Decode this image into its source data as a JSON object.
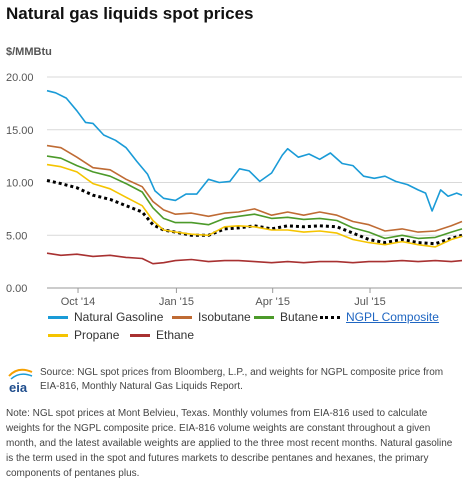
{
  "header": {
    "title": "Natural gas liquids spot prices",
    "unit": "$/MMBtu"
  },
  "chart_data": {
    "type": "line",
    "title": "Natural gas liquids spot prices",
    "ylabel": "$/MMBtu",
    "ylim": [
      0,
      20
    ],
    "yticks": [
      "0.00",
      "5.00",
      "10.00",
      "15.00",
      "20.00"
    ],
    "xlim": [
      "2014-09-02",
      "2015-09-25"
    ],
    "xticks": [
      {
        "date": "2014-10-01",
        "label": "Oct '14"
      },
      {
        "date": "2015-01-01",
        "label": "Jan '15"
      },
      {
        "date": "2015-04-01",
        "label": "Apr '15"
      },
      {
        "date": "2015-07-01",
        "label": "Jul '15"
      }
    ],
    "grid": "horizontal",
    "legend_position": "bottom",
    "series": [
      {
        "name": "Natural Gasoline",
        "color": "#1a9bd7",
        "style": "solid",
        "x": [
          "2014-09-02",
          "2014-09-10",
          "2014-09-20",
          "2014-09-30",
          "2014-10-08",
          "2014-10-15",
          "2014-10-25",
          "2014-11-05",
          "2014-11-15",
          "2014-11-25",
          "2014-12-05",
          "2014-12-12",
          "2014-12-20",
          "2014-12-31",
          "2015-01-10",
          "2015-01-20",
          "2015-01-31",
          "2015-02-10",
          "2015-02-20",
          "2015-03-01",
          "2015-03-10",
          "2015-03-20",
          "2015-03-31",
          "2015-04-10",
          "2015-04-15",
          "2015-04-25",
          "2015-05-05",
          "2015-05-15",
          "2015-05-25",
          "2015-06-05",
          "2015-06-15",
          "2015-06-25",
          "2015-07-05",
          "2015-07-15",
          "2015-07-25",
          "2015-08-05",
          "2015-08-15",
          "2015-08-22",
          "2015-08-28",
          "2015-09-05",
          "2015-09-12",
          "2015-09-20",
          "2015-09-25"
        ],
        "values": [
          18.7,
          18.5,
          18.0,
          16.8,
          15.7,
          15.6,
          14.5,
          14.0,
          13.3,
          12.0,
          10.8,
          9.2,
          8.5,
          8.3,
          8.9,
          8.9,
          10.3,
          10.0,
          10.1,
          11.3,
          11.1,
          10.1,
          10.9,
          12.6,
          13.2,
          12.4,
          12.7,
          12.2,
          12.8,
          11.8,
          11.6,
          10.6,
          10.4,
          10.6,
          10.1,
          9.8,
          9.3,
          9.0,
          7.3,
          9.3,
          8.7,
          9.0,
          8.8
        ]
      },
      {
        "name": "Isobutane",
        "color": "#bf6b34",
        "style": "solid",
        "x": [
          "2014-09-02",
          "2014-09-15",
          "2014-09-30",
          "2014-10-15",
          "2014-10-31",
          "2014-11-15",
          "2014-11-30",
          "2014-12-10",
          "2014-12-20",
          "2014-12-31",
          "2015-01-15",
          "2015-01-31",
          "2015-02-15",
          "2015-02-28",
          "2015-03-15",
          "2015-03-31",
          "2015-04-15",
          "2015-04-30",
          "2015-05-15",
          "2015-05-31",
          "2015-06-15",
          "2015-06-30",
          "2015-07-15",
          "2015-07-31",
          "2015-08-15",
          "2015-08-31",
          "2015-09-15",
          "2015-09-25"
        ],
        "values": [
          13.5,
          13.3,
          12.4,
          11.4,
          11.2,
          10.3,
          9.6,
          8.2,
          7.4,
          7.0,
          7.1,
          6.8,
          7.1,
          7.2,
          7.5,
          6.9,
          7.2,
          6.9,
          7.2,
          6.9,
          6.3,
          6.0,
          5.4,
          5.6,
          5.3,
          5.4,
          5.9,
          6.3
        ]
      },
      {
        "name": "Butane",
        "color": "#4c9a2a",
        "style": "solid",
        "x": [
          "2014-09-02",
          "2014-09-15",
          "2014-09-30",
          "2014-10-15",
          "2014-10-31",
          "2014-11-15",
          "2014-11-30",
          "2014-12-10",
          "2014-12-20",
          "2014-12-31",
          "2015-01-15",
          "2015-01-31",
          "2015-02-15",
          "2015-02-28",
          "2015-03-15",
          "2015-03-31",
          "2015-04-15",
          "2015-04-30",
          "2015-05-15",
          "2015-05-31",
          "2015-06-15",
          "2015-06-30",
          "2015-07-15",
          "2015-07-31",
          "2015-08-15",
          "2015-08-31",
          "2015-09-15",
          "2015-09-25"
        ],
        "values": [
          12.5,
          12.3,
          11.6,
          11.0,
          10.6,
          9.9,
          9.1,
          7.6,
          6.6,
          6.2,
          6.2,
          6.0,
          6.6,
          6.8,
          7.0,
          6.6,
          6.7,
          6.5,
          6.6,
          6.4,
          5.7,
          5.3,
          4.7,
          5.0,
          4.7,
          4.8,
          5.3,
          5.6
        ]
      },
      {
        "name": "NGPL Composite",
        "color": "#000000",
        "style": "dotted",
        "x": [
          "2014-09-02",
          "2014-09-15",
          "2014-09-30",
          "2014-10-15",
          "2014-10-31",
          "2014-11-15",
          "2014-11-30",
          "2014-12-10",
          "2014-12-20",
          "2014-12-31",
          "2015-01-15",
          "2015-01-31",
          "2015-02-15",
          "2015-02-28",
          "2015-03-15",
          "2015-03-31",
          "2015-04-15",
          "2015-04-30",
          "2015-05-15",
          "2015-05-31",
          "2015-06-15",
          "2015-06-30",
          "2015-07-15",
          "2015-07-31",
          "2015-08-15",
          "2015-08-31",
          "2015-09-15",
          "2015-09-25"
        ],
        "values": [
          10.2,
          9.9,
          9.5,
          8.8,
          8.4,
          7.8,
          7.2,
          6.0,
          5.5,
          5.3,
          5.0,
          5.0,
          5.6,
          5.7,
          5.9,
          5.6,
          5.9,
          5.8,
          5.9,
          5.8,
          5.2,
          4.6,
          4.3,
          4.6,
          4.3,
          4.2,
          4.7,
          5.0
        ]
      },
      {
        "name": "Propane",
        "color": "#f5c400",
        "style": "solid",
        "x": [
          "2014-09-02",
          "2014-09-15",
          "2014-09-30",
          "2014-10-15",
          "2014-10-31",
          "2014-11-15",
          "2014-11-30",
          "2014-12-10",
          "2014-12-20",
          "2014-12-31",
          "2015-01-15",
          "2015-01-31",
          "2015-02-15",
          "2015-02-28",
          "2015-03-15",
          "2015-03-31",
          "2015-04-15",
          "2015-04-30",
          "2015-05-15",
          "2015-05-31",
          "2015-06-15",
          "2015-06-30",
          "2015-07-15",
          "2015-07-31",
          "2015-08-15",
          "2015-08-31",
          "2015-09-15",
          "2015-09-25"
        ],
        "values": [
          11.7,
          11.5,
          11.0,
          9.9,
          9.4,
          8.6,
          7.8,
          6.4,
          5.5,
          5.3,
          5.1,
          5.0,
          5.8,
          5.9,
          5.8,
          5.5,
          5.5,
          5.3,
          5.4,
          5.2,
          4.6,
          4.3,
          4.1,
          4.4,
          4.1,
          3.9,
          4.6,
          4.9
        ]
      },
      {
        "name": "Ethane",
        "color": "#a83131",
        "style": "solid",
        "x": [
          "2014-09-02",
          "2014-09-15",
          "2014-09-30",
          "2014-10-15",
          "2014-10-31",
          "2014-11-15",
          "2014-11-30",
          "2014-12-10",
          "2014-12-20",
          "2014-12-31",
          "2015-01-15",
          "2015-01-31",
          "2015-02-15",
          "2015-02-28",
          "2015-03-15",
          "2015-03-31",
          "2015-04-15",
          "2015-04-30",
          "2015-05-15",
          "2015-05-31",
          "2015-06-15",
          "2015-06-30",
          "2015-07-15",
          "2015-07-31",
          "2015-08-15",
          "2015-08-31",
          "2015-09-15",
          "2015-09-25"
        ],
        "values": [
          3.3,
          3.1,
          3.2,
          3.0,
          3.1,
          2.9,
          2.8,
          2.3,
          2.4,
          2.6,
          2.7,
          2.5,
          2.6,
          2.6,
          2.5,
          2.4,
          2.5,
          2.4,
          2.5,
          2.5,
          2.4,
          2.5,
          2.5,
          2.6,
          2.5,
          2.6,
          2.5,
          2.6
        ]
      }
    ]
  },
  "legend": {
    "items": [
      {
        "label": "Natural Gasoline",
        "color": "#1a9bd7",
        "style": "solid"
      },
      {
        "label": "Isobutane",
        "color": "#bf6b34",
        "style": "solid"
      },
      {
        "label": "Butane",
        "color": "#4c9a2a",
        "style": "solid"
      },
      {
        "label": "NGPL Composite",
        "color": "#000000",
        "style": "dotted"
      },
      {
        "label": "Propane",
        "color": "#f5c400",
        "style": "solid"
      },
      {
        "label": "Ethane",
        "color": "#a83131",
        "style": "solid"
      }
    ]
  },
  "footer": {
    "logo_text": "eia",
    "source": "Source: NGL spot prices from Bloomberg, L.P., and weights for NGPL composite price from EIA-816, Monthly Natural Gas Liquids Report.",
    "note": "Note: NGL spot prices at Mont Belvieu, Texas. Monthly volumes from EIA-816 used to calculate weights for the NGPL composite price. EIA-816 volume weights are constant throughout a given month, and the latest available weights are applied to the three most recent months. Natural gasoline is the term used in the spot and futures markets to describe pentanes and hexanes, the primary components of pentanes plus."
  }
}
